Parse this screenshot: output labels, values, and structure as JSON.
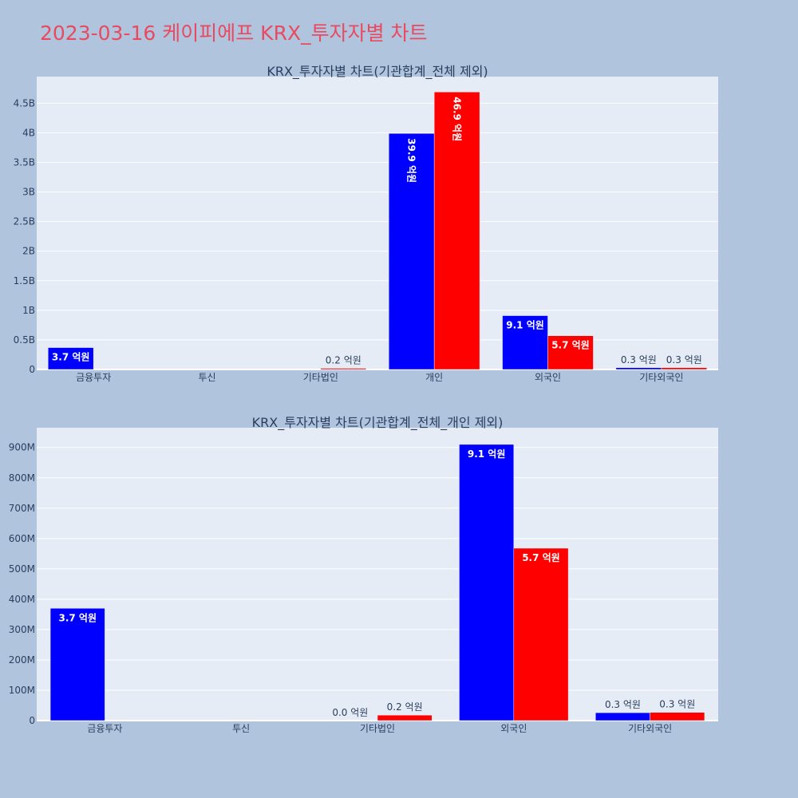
{
  "page": {
    "title": "2023-03-16 케이피에프 KRX_투자자별 차트",
    "title_color": "#e84a5f",
    "background": "#b0c4de",
    "plot_background": "#e5ecf6"
  },
  "chart_data": [
    {
      "type": "bar",
      "title": "KRX_투자자별 차트(기관합계_전체 제외)",
      "categories": [
        "금융투자",
        "투신",
        "기타법인",
        "개인",
        "외국인",
        "기타외국인"
      ],
      "ylim": [
        0,
        4950000000
      ],
      "yticks": [
        {
          "value": 0,
          "label": "0"
        },
        {
          "value": 500000000,
          "label": "0.5B"
        },
        {
          "value": 1000000000,
          "label": "1B"
        },
        {
          "value": 1500000000,
          "label": "1.5B"
        },
        {
          "value": 2000000000,
          "label": "2B"
        },
        {
          "value": 2500000000,
          "label": "2.5B"
        },
        {
          "value": 3000000000,
          "label": "3B"
        },
        {
          "value": 3500000000,
          "label": "3.5B"
        },
        {
          "value": 4000000000,
          "label": "4B"
        },
        {
          "value": 4500000000,
          "label": "4.5B"
        }
      ],
      "grid": true,
      "series": [
        {
          "color": "#0000ff",
          "values": [
            370000000,
            0,
            0,
            3990000000,
            910000000,
            30000000
          ],
          "labels": [
            "3.7 억원",
            "",
            "",
            "39.9 억원",
            "9.1 억원",
            "0.3 억원"
          ]
        },
        {
          "color": "#ff0000",
          "values": [
            0,
            0,
            20000000,
            4690000000,
            570000000,
            30000000
          ],
          "labels": [
            "",
            "",
            "0.2 억원",
            "46.9 억원",
            "5.7 억원",
            "0.3 억원"
          ]
        }
      ]
    },
    {
      "type": "bar",
      "title": "KRX_투자자별 차트(기관합계_전체_개인 제외)",
      "categories": [
        "금융투자",
        "투신",
        "기타법인",
        "외국인",
        "기타외국인"
      ],
      "ylim": [
        0,
        965000000
      ],
      "yticks": [
        {
          "value": 0,
          "label": "0"
        },
        {
          "value": 100000000,
          "label": "100M"
        },
        {
          "value": 200000000,
          "label": "200M"
        },
        {
          "value": 300000000,
          "label": "300M"
        },
        {
          "value": 400000000,
          "label": "400M"
        },
        {
          "value": 500000000,
          "label": "500M"
        },
        {
          "value": 600000000,
          "label": "600M"
        },
        {
          "value": 700000000,
          "label": "700M"
        },
        {
          "value": 800000000,
          "label": "800M"
        },
        {
          "value": 900000000,
          "label": "900M"
        }
      ],
      "grid": true,
      "series": [
        {
          "color": "#0000ff",
          "values": [
            370000000,
            0,
            0,
            910000000,
            26000000
          ],
          "labels": [
            "3.7 억원",
            "",
            "0.0 억원",
            "9.1 억원",
            "0.3 억원"
          ]
        },
        {
          "color": "#ff0000",
          "values": [
            0,
            0,
            18000000,
            568000000,
            27000000
          ],
          "labels": [
            "",
            "",
            "0.2 억원",
            "5.7 억원",
            "0.3 억원"
          ]
        }
      ]
    }
  ]
}
